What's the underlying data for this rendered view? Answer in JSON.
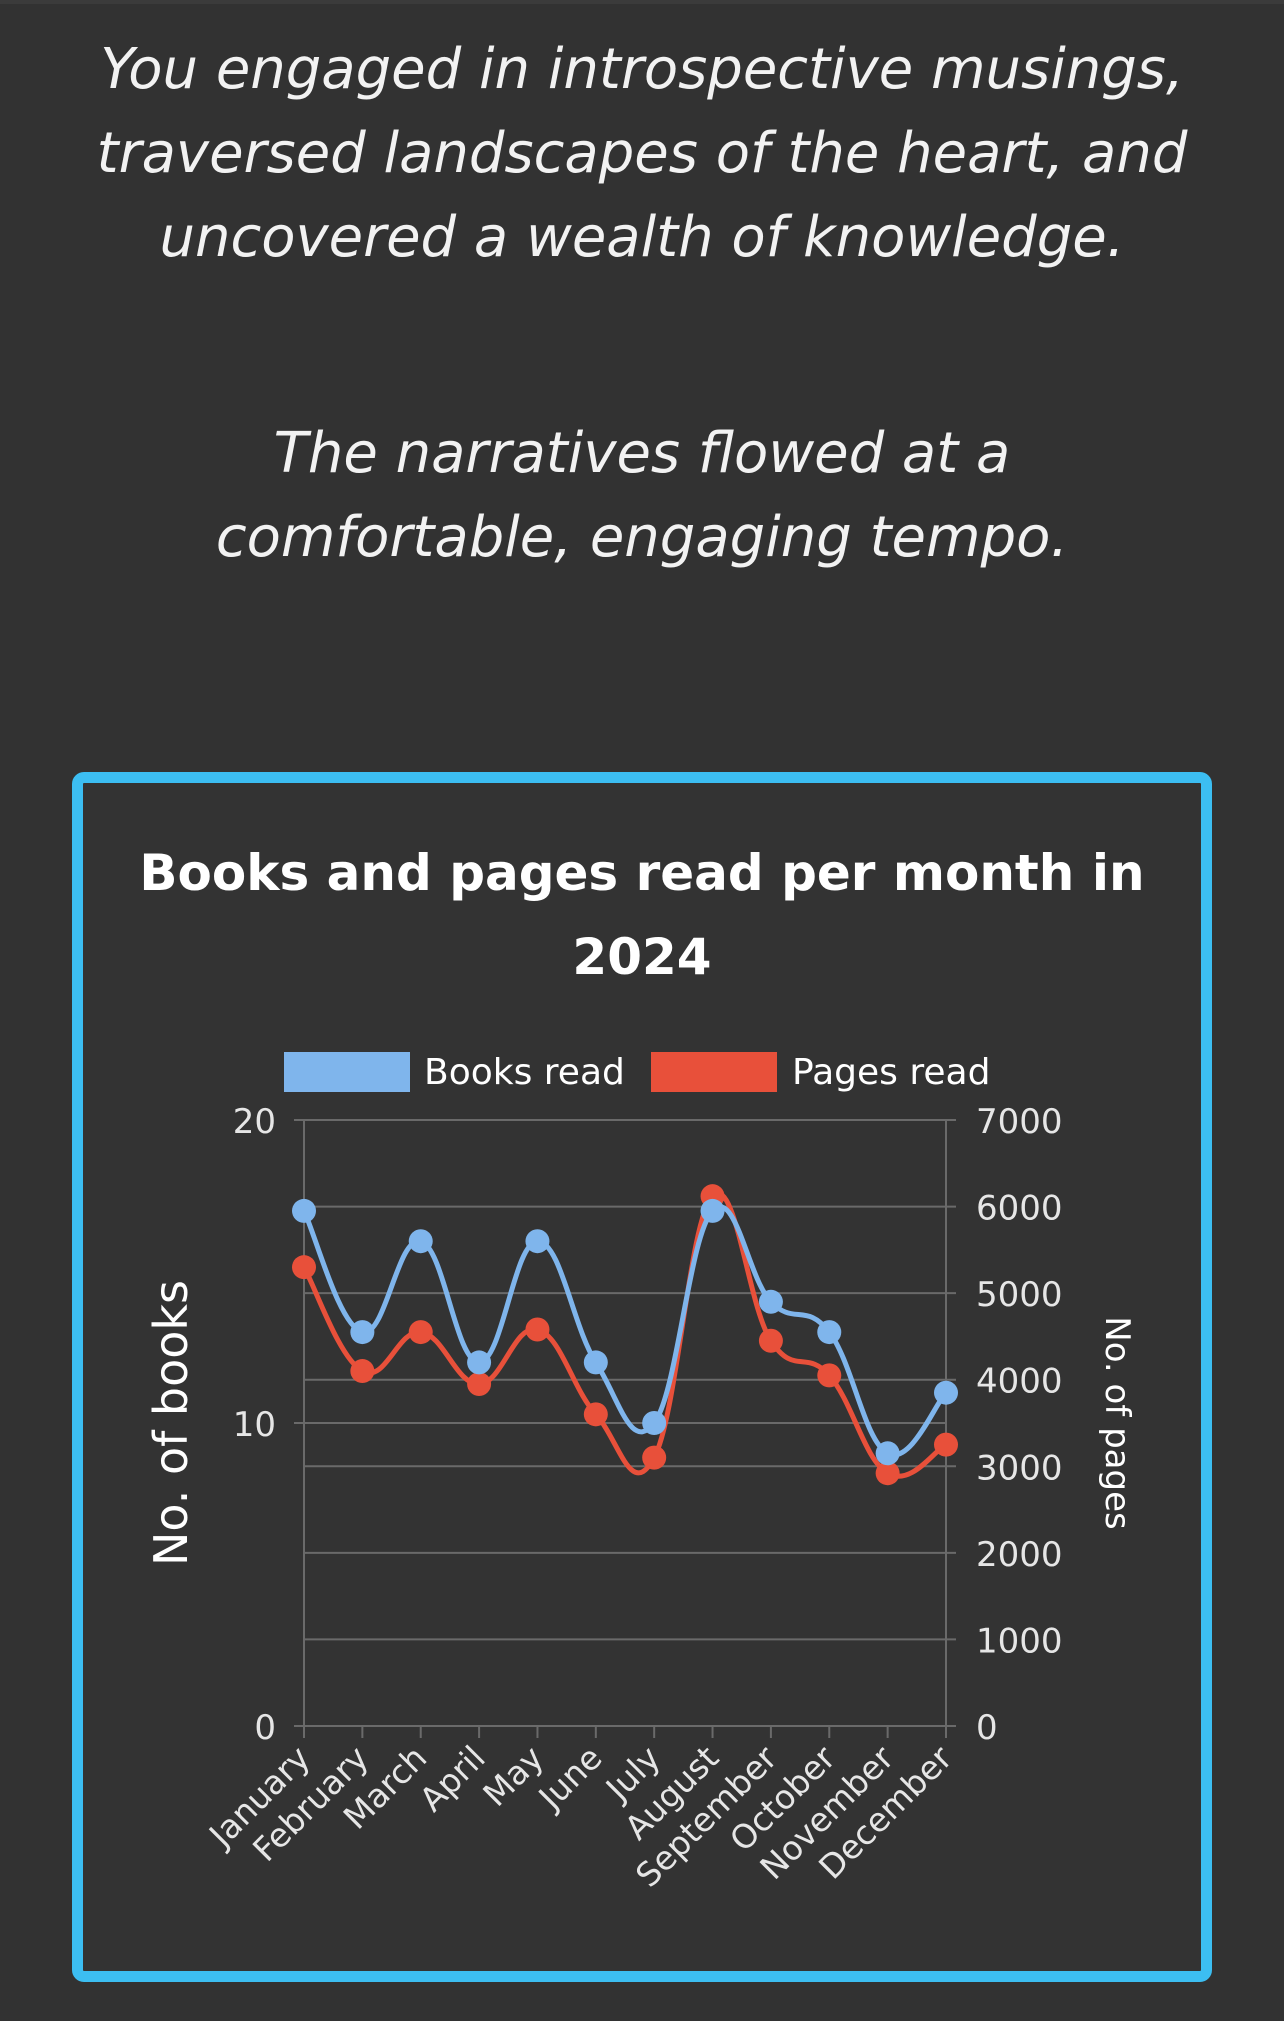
{
  "intro": {
    "paragraph_1": "You engaged in introspective musings, traversed landscapes of the heart, and uncovered a wealth of knowledge.",
    "paragraph_2": "The narratives flowed at a comfortable, engaging tempo."
  },
  "colors": {
    "background": "#323232",
    "card_border": "#3cbef2",
    "books_series": "#7fb5ec",
    "pages_series": "#e8503a",
    "grid": "#6a6a6a"
  },
  "chart_data": {
    "type": "line",
    "title_line_1": "Books and pages read per month in",
    "title_line_2": "2024",
    "categories": [
      "January",
      "February",
      "March",
      "April",
      "May",
      "June",
      "July",
      "August",
      "September",
      "October",
      "November",
      "December"
    ],
    "series": [
      {
        "name": "Books read",
        "axis": "left",
        "color": "#7fb5ec",
        "values": [
          17,
          13,
          16,
          12,
          16,
          12,
          10,
          17,
          14,
          13,
          9,
          11
        ]
      },
      {
        "name": "Pages read",
        "axis": "right",
        "color": "#e8503a",
        "values": [
          5300,
          4100,
          4550,
          3950,
          4580,
          3600,
          3100,
          6120,
          4450,
          4050,
          2920,
          3250
        ]
      }
    ],
    "y_left": {
      "label": "No. of books",
      "min": 0,
      "max": 20,
      "ticks": [
        0,
        10,
        20
      ]
    },
    "y_right": {
      "label": "No. of pages",
      "min": 0,
      "max": 7000,
      "ticks": [
        0,
        1000,
        2000,
        3000,
        4000,
        5000,
        6000,
        7000
      ]
    },
    "legend_position": "top",
    "grid": true
  }
}
